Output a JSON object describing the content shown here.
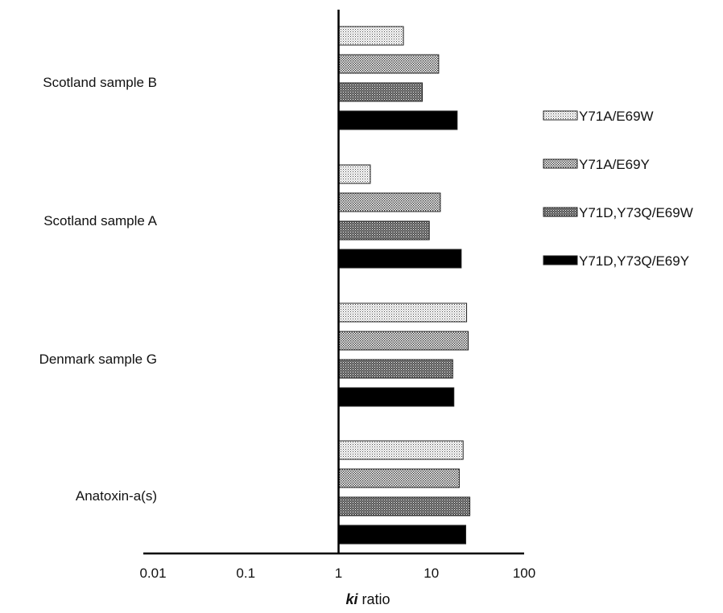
{
  "chart_data": {
    "type": "bar",
    "orientation": "horizontal",
    "x_scale": "log",
    "xlim": [
      0.01,
      100
    ],
    "baseline": 1,
    "xlabel": {
      "emph": "ki",
      "rest": " ratio"
    },
    "ticks": [
      {
        "value": 0.01,
        "label": "0.01"
      },
      {
        "value": 0.1,
        "label": "0.1"
      },
      {
        "value": 1,
        "label": "1"
      },
      {
        "value": 10,
        "label": "10"
      },
      {
        "value": 100,
        "label": "100"
      }
    ],
    "categories": [
      "Scotland sample B",
      "Scotland sample A",
      "Denmark sample G",
      "Anatoxin-a(s)"
    ],
    "series": [
      {
        "name": "Y71A/E69W",
        "pattern": "fine-dots",
        "values": [
          5.0,
          2.2,
          24,
          22
        ]
      },
      {
        "name": "Y71A/E69Y",
        "pattern": "dots",
        "values": [
          12,
          12.5,
          25,
          20
        ]
      },
      {
        "name": "Y71D,Y73Q/E69W",
        "pattern": "dense",
        "values": [
          8,
          9.5,
          17,
          26
        ]
      },
      {
        "name": "Y71D,Y73Q/E69Y",
        "pattern": "solid",
        "values": [
          19,
          21,
          17.5,
          23.5
        ]
      }
    ],
    "legend_position": "right",
    "grid": false
  }
}
